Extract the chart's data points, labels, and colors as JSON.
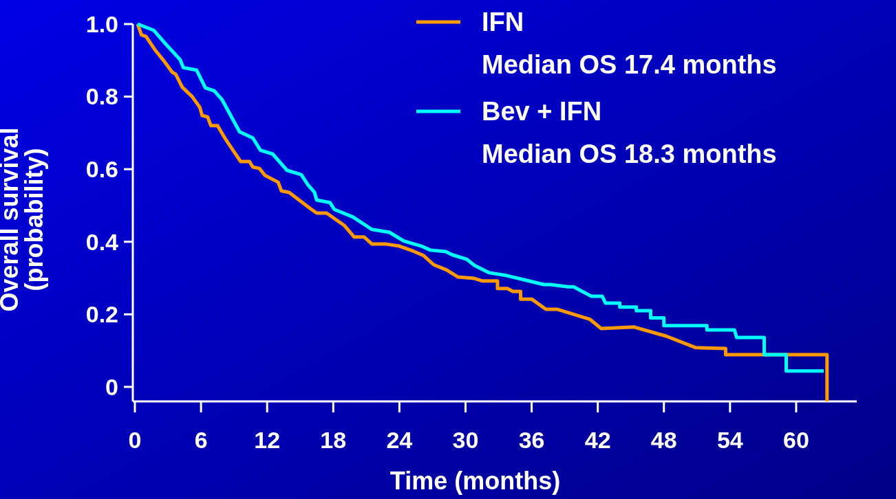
{
  "chart_data": {
    "type": "line",
    "xlabel": "Time (months)",
    "ylabel": "Overall survival\n(probability)",
    "xlim": [
      0,
      65.5
    ],
    "ylim": [
      -0.04,
      1
    ],
    "xticks": [
      0,
      6,
      12,
      18,
      24,
      30,
      36,
      42,
      48,
      54,
      60
    ],
    "yticks": [
      0,
      0.2,
      0.4,
      0.6,
      0.8,
      {
        "value": 1,
        "label": "1.0"
      }
    ],
    "legend": "top right",
    "grid": false,
    "line_style": "solid",
    "annotations": [
      "Median OS 17.4 months",
      "Median OS 18.3 months"
    ],
    "series": [
      {
        "name": "IFN",
        "color": "#ff9900",
        "x": [
          0.25,
          0.6,
          1.0,
          1.8,
          2.7,
          3.4,
          3.7,
          4.3,
          5.2,
          5.9,
          6.1,
          6.6,
          6.9,
          7.5,
          8.2,
          9.6,
          10.4,
          10.7,
          11.3,
          11.8,
          13.0,
          13.3,
          14.0,
          15.9,
          16.5,
          17.4,
          19.0,
          19.9,
          20.8,
          21.5,
          22.7,
          24.0,
          25.2,
          26.2,
          27.1,
          28.3,
          29.3,
          30.8,
          31.5,
          32.9,
          32.9,
          33.8,
          34.3,
          35.0,
          35.0,
          36.0,
          37.3,
          38.3,
          41.3,
          42.3,
          45.3,
          48.2,
          50.9,
          53.6,
          53.6,
          62.8,
          62.8
        ],
        "values": [
          1.0,
          0.97,
          0.966,
          0.93,
          0.896,
          0.867,
          0.862,
          0.826,
          0.8,
          0.77,
          0.748,
          0.744,
          0.72,
          0.72,
          0.684,
          0.621,
          0.621,
          0.606,
          0.602,
          0.583,
          0.564,
          0.54,
          0.536,
          0.492,
          0.479,
          0.479,
          0.445,
          0.413,
          0.413,
          0.394,
          0.394,
          0.388,
          0.375,
          0.362,
          0.337,
          0.322,
          0.303,
          0.299,
          0.292,
          0.292,
          0.271,
          0.271,
          0.263,
          0.263,
          0.242,
          0.242,
          0.214,
          0.214,
          0.186,
          0.161,
          0.165,
          0.14,
          0.108,
          0.106,
          0.089,
          0.089,
          -0.04
        ]
      },
      {
        "name": "Bev + IFN",
        "color": "#00ffff",
        "x": [
          0.25,
          1.7,
          2.8,
          4.1,
          4.4,
          5.6,
          6.4,
          7.2,
          7.9,
          9.5,
          10.7,
          11.4,
          12.5,
          13.8,
          15.1,
          15.7,
          16.3,
          16.5,
          17.7,
          18.1,
          19.8,
          21.5,
          23.1,
          24.4,
          26.0,
          26.8,
          28.2,
          28.8,
          30.1,
          30.8,
          32.1,
          33.7,
          37.1,
          37.7,
          39.3,
          39.8,
          41.4,
          42.4,
          42.7,
          44.0,
          44.0,
          45.5,
          45.5,
          46.8,
          46.8,
          48.0,
          48.0,
          51.9,
          51.9,
          54.4,
          54.6,
          57.1,
          57.1,
          59.1,
          59.1,
          62.5
        ],
        "values": [
          1.0,
          0.983,
          0.945,
          0.902,
          0.88,
          0.873,
          0.824,
          0.816,
          0.792,
          0.703,
          0.686,
          0.652,
          0.642,
          0.597,
          0.585,
          0.557,
          0.536,
          0.515,
          0.508,
          0.489,
          0.468,
          0.434,
          0.426,
          0.402,
          0.388,
          0.377,
          0.373,
          0.364,
          0.352,
          0.335,
          0.315,
          0.307,
          0.282,
          0.282,
          0.276,
          0.276,
          0.25,
          0.25,
          0.231,
          0.231,
          0.22,
          0.22,
          0.21,
          0.21,
          0.19,
          0.19,
          0.169,
          0.169,
          0.157,
          0.157,
          0.136,
          0.136,
          0.089,
          0.089,
          0.044,
          0.044
        ]
      }
    ]
  }
}
